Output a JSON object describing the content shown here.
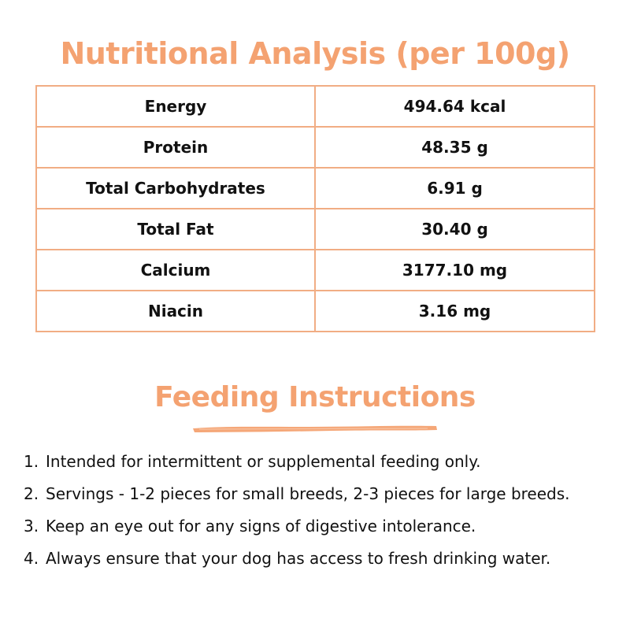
{
  "nutrition": {
    "title": "Nutritional Analysis (per 100g)",
    "rows": [
      {
        "name": "Energy",
        "value": "494.64 kcal"
      },
      {
        "name": "Protein",
        "value": "48.35 g"
      },
      {
        "name": "Total Carbohydrates",
        "value": "6.91 g"
      },
      {
        "name": "Total Fat",
        "value": "30.40 g"
      },
      {
        "name": "Calcium",
        "value": "3177.10 mg"
      },
      {
        "name": "Niacin",
        "value": "3.16 mg"
      }
    ]
  },
  "feeding": {
    "title": "Feeding Instructions",
    "items": [
      {
        "num": "1.",
        "text": "Intended for intermittent or supplemental feeding only."
      },
      {
        "num": "2.",
        "text": "Servings - 1-2 pieces for small breeds, 2-3 pieces for large breeds."
      },
      {
        "num": "3.",
        "text": "Keep an eye out for any signs of digestive intolerance."
      },
      {
        "num": "4.",
        "text": "Always ensure that your dog has access to fresh drinking water."
      }
    ]
  },
  "colors": {
    "accent": "#f4a271",
    "table_border": "#f1ad84",
    "text": "#111111"
  }
}
